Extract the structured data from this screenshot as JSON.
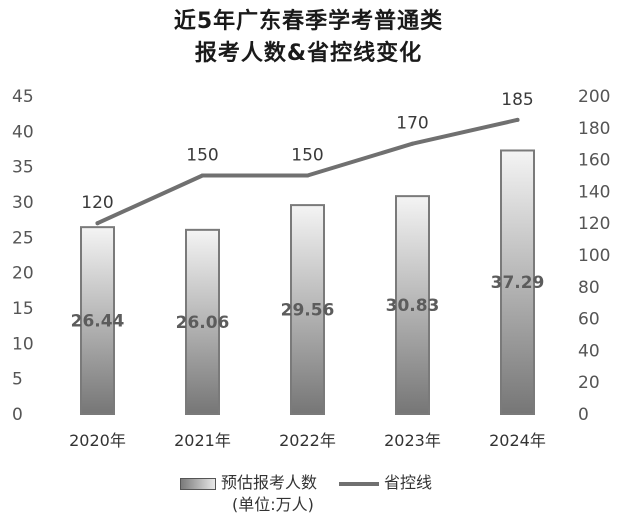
{
  "title": {
    "line1": "近5年广东春季学考普通类",
    "line2": "报考人数&省控线变化"
  },
  "colors": {
    "bar_dark": "#7a7a7a",
    "bar_light": "#f2f2f2",
    "line": "#707070"
  },
  "chart_data": {
    "type": "bar",
    "categories": [
      "2020年",
      "2021年",
      "2022年",
      "2023年",
      "2024年"
    ],
    "series": [
      {
        "name": "预估报考人数",
        "type": "bar",
        "axis": "left",
        "values": [
          26.44,
          26.06,
          29.56,
          30.83,
          37.29
        ],
        "labels": [
          "26.44",
          "26.06",
          "29.56",
          "30.83",
          "37.29"
        ]
      },
      {
        "name": "省控线",
        "type": "line",
        "axis": "right",
        "values": [
          120,
          150,
          150,
          170,
          185
        ],
        "labels": [
          "120",
          "150",
          "150",
          "170",
          "185"
        ]
      }
    ],
    "left_axis": {
      "ylim": [
        0,
        45
      ],
      "ticks": [
        "0",
        "5",
        "10",
        "15",
        "20",
        "25",
        "30",
        "35",
        "40",
        "45"
      ]
    },
    "right_axis": {
      "ylim": [
        0,
        200
      ],
      "ticks": [
        "0",
        "20",
        "40",
        "60",
        "80",
        "100",
        "120",
        "140",
        "160",
        "180",
        "200"
      ]
    },
    "grid": false,
    "legend_position": "bottom",
    "legend": {
      "bar_label": "预估报考人数",
      "bar_unit": "(单位:万人)",
      "line_label": "省控线"
    }
  }
}
